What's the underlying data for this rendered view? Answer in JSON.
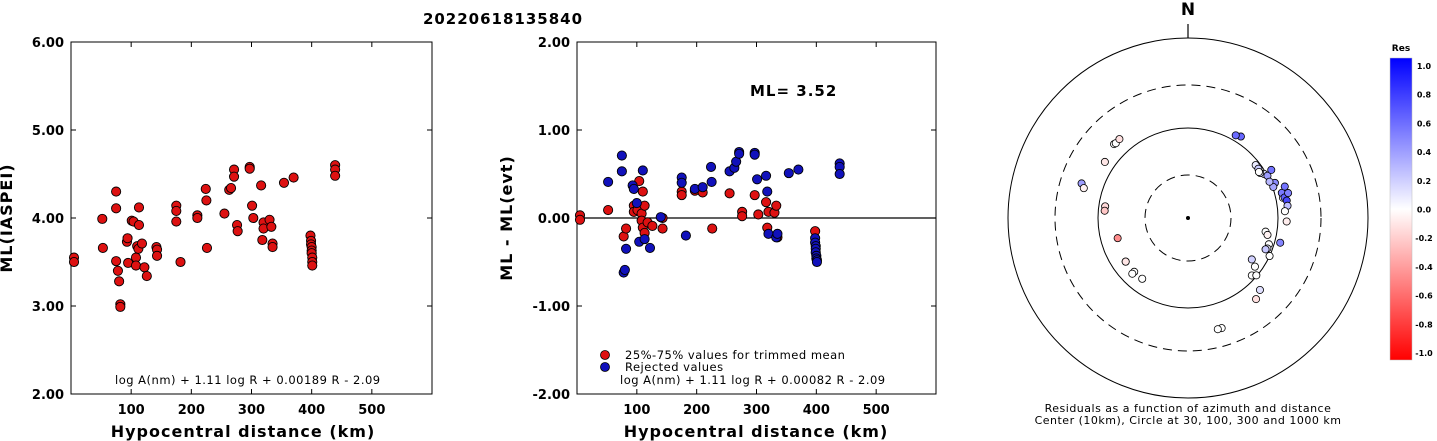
{
  "header": {
    "event_id": "20220618135840"
  },
  "chart_data": [
    {
      "type": "scatter",
      "title": "",
      "xlabel": "Hypocentral distance (km)",
      "ylabel": "ML(IASPEI)",
      "xlim": [
        0,
        600
      ],
      "ylim": [
        2.0,
        6.0
      ],
      "xticks": [
        "100",
        "200",
        "300",
        "400",
        "500"
      ],
      "yticks": [
        "2.00",
        "3.00",
        "4.00",
        "5.00",
        "6.00"
      ],
      "annotation": "log A(nm) + 1.11 log R + 0.00189 R - 2.09",
      "series": [
        {
          "color": "#dd1111",
          "points": [
            [
              5,
              3.55
            ],
            [
              5,
              3.5
            ],
            [
              52,
              3.99
            ],
            [
              53,
              3.66
            ],
            [
              75,
              4.3
            ],
            [
              75,
              4.11
            ],
            [
              75,
              3.51
            ],
            [
              78,
              3.4
            ],
            [
              80,
              3.28
            ],
            [
              82,
              3.02
            ],
            [
              82,
              2.99
            ],
            [
              93,
              3.73
            ],
            [
              94,
              3.77
            ],
            [
              95,
              3.49
            ],
            [
              101,
              3.97
            ],
            [
              104,
              3.96
            ],
            [
              108,
              3.55
            ],
            [
              108,
              3.46
            ],
            [
              110,
              3.68
            ],
            [
              112,
              3.65
            ],
            [
              113,
              4.12
            ],
            [
              113,
              3.92
            ],
            [
              118,
              3.71
            ],
            [
              122,
              3.44
            ],
            [
              126,
              3.34
            ],
            [
              142,
              3.67
            ],
            [
              143,
              3.64
            ],
            [
              143,
              3.57
            ],
            [
              175,
              4.14
            ],
            [
              175,
              4.08
            ],
            [
              175,
              3.96
            ],
            [
              182,
              3.5
            ],
            [
              210,
              4.03
            ],
            [
              210,
              4.0
            ],
            [
              224,
              4.33
            ],
            [
              225,
              4.2
            ],
            [
              226,
              3.66
            ],
            [
              255,
              4.05
            ],
            [
              263,
              4.32
            ],
            [
              266,
              4.34
            ],
            [
              271,
              4.55
            ],
            [
              271,
              4.47
            ],
            [
              276,
              3.92
            ],
            [
              277,
              3.85
            ],
            [
              297,
              4.58
            ],
            [
              297,
              4.56
            ],
            [
              301,
              4.14
            ],
            [
              303,
              4.0
            ],
            [
              316,
              4.37
            ],
            [
              318,
              3.75
            ],
            [
              320,
              3.95
            ],
            [
              320,
              3.88
            ],
            [
              330,
              3.98
            ],
            [
              333,
              3.9
            ],
            [
              335,
              3.71
            ],
            [
              335,
              3.67
            ],
            [
              354,
              4.4
            ],
            [
              370,
              4.46
            ],
            [
              398,
              3.8
            ],
            [
              399,
              3.74
            ],
            [
              399,
              3.7
            ],
            [
              400,
              3.67
            ],
            [
              400,
              3.63
            ],
            [
              400,
              3.6
            ],
            [
              401,
              3.55
            ],
            [
              401,
              3.5
            ],
            [
              401,
              3.46
            ],
            [
              439,
              4.6
            ],
            [
              439,
              4.55
            ],
            [
              439,
              4.48
            ]
          ]
        }
      ]
    },
    {
      "type": "scatter",
      "title": "",
      "xlabel": "Hypocentral distance (km)",
      "ylabel": "ML - ML(evt)",
      "xlim": [
        0,
        600
      ],
      "ylim": [
        -2.0,
        2.0
      ],
      "xticks": [
        "100",
        "200",
        "300",
        "400",
        "500"
      ],
      "yticks": [
        "-2.00",
        "-1.00",
        "0.00",
        "1.00",
        "2.00"
      ],
      "reference_line": 0.0,
      "ml_label": "ML= 3.52",
      "annotation": "log A(nm) + 1.11 log R + 0.00082 R - 2.09",
      "legend": [
        {
          "label": "25%-75% values for trimmed mean",
          "color": "#dd1111"
        },
        {
          "label": "Rejected values",
          "color": "#1111bb"
        }
      ],
      "series": [
        {
          "color": "#dd1111",
          "points": [
            [
              5,
              0.03
            ],
            [
              5,
              -0.02
            ],
            [
              52,
              0.09
            ],
            [
              78,
              -0.21
            ],
            [
              82,
              -0.12
            ],
            [
              95,
              0.14
            ],
            [
              95,
              0.07
            ],
            [
              101,
              0.09
            ],
            [
              104,
              0.42
            ],
            [
              108,
              0.05
            ],
            [
              108,
              -0.03
            ],
            [
              110,
              0.3
            ],
            [
              110,
              -0.11
            ],
            [
              113,
              0.14
            ],
            [
              113,
              -0.17
            ],
            [
              118,
              -0.05
            ],
            [
              126,
              -0.09
            ],
            [
              143,
              0.0
            ],
            [
              143,
              -0.12
            ],
            [
              175,
              0.3
            ],
            [
              175,
              0.26
            ],
            [
              197,
              0.31
            ],
            [
              210,
              0.29
            ],
            [
              226,
              -0.12
            ],
            [
              255,
              0.28
            ],
            [
              276,
              0.07
            ],
            [
              276,
              0.02
            ],
            [
              297,
              0.26
            ],
            [
              303,
              0.04
            ],
            [
              316,
              0.18
            ],
            [
              318,
              -0.11
            ],
            [
              320,
              0.07
            ],
            [
              330,
              0.06
            ],
            [
              333,
              0.14
            ],
            [
              335,
              -0.22
            ],
            [
              398,
              -0.15
            ]
          ]
        },
        {
          "color": "#1111bb",
          "points": [
            [
              52,
              0.41
            ],
            [
              75,
              0.71
            ],
            [
              75,
              0.53
            ],
            [
              78,
              -0.62
            ],
            [
              80,
              -0.59
            ],
            [
              82,
              -0.35
            ],
            [
              93,
              0.37
            ],
            [
              95,
              0.33
            ],
            [
              100,
              0.17
            ],
            [
              104,
              -0.27
            ],
            [
              110,
              0.54
            ],
            [
              113,
              -0.24
            ],
            [
              122,
              -0.34
            ],
            [
              140,
              0.01
            ],
            [
              175,
              0.46
            ],
            [
              175,
              0.4
            ],
            [
              182,
              -0.2
            ],
            [
              197,
              0.33
            ],
            [
              210,
              0.35
            ],
            [
              224,
              0.58
            ],
            [
              225,
              0.41
            ],
            [
              255,
              0.53
            ],
            [
              263,
              0.57
            ],
            [
              266,
              0.64
            ],
            [
              271,
              0.75
            ],
            [
              271,
              0.73
            ],
            [
              297,
              0.74
            ],
            [
              297,
              0.72
            ],
            [
              301,
              0.44
            ],
            [
              316,
              0.48
            ],
            [
              318,
              0.3
            ],
            [
              320,
              -0.18
            ],
            [
              333,
              -0.22
            ],
            [
              335,
              -0.18
            ],
            [
              354,
              0.51
            ],
            [
              370,
              0.55
            ],
            [
              398,
              -0.23
            ],
            [
              398,
              -0.28
            ],
            [
              399,
              -0.32
            ],
            [
              399,
              -0.35
            ],
            [
              399,
              -0.39
            ],
            [
              400,
              -0.43
            ],
            [
              400,
              -0.46
            ],
            [
              401,
              -0.48
            ],
            [
              401,
              -0.5
            ],
            [
              439,
              0.62
            ],
            [
              439,
              0.58
            ],
            [
              439,
              0.5
            ]
          ]
        }
      ]
    },
    {
      "type": "scatter",
      "subtype": "polar-residual-map",
      "north_label": "N",
      "caption_line1": "Residuals as a function of azimuth and distance",
      "caption_line2": "Center (10km), Circle at 30, 100, 300 and 1000 km",
      "rings_km": [
        30,
        100,
        300,
        1000
      ],
      "colorbar": {
        "title": "Res",
        "ticks": [
          "1.0",
          "0.8",
          "0.6",
          "0.4",
          "0.2",
          "0.0",
          "-0.2",
          "-0.4",
          "-0.6",
          "-0.8",
          "-1.0"
        ],
        "high_color": "#0000ff",
        "low_color": "#ff0000"
      },
      "points_azimuth_distance_residual": [
        [
          -45,
          145,
          0.0
        ],
        [
          -44,
          143,
          0.0
        ],
        [
          -41,
          145,
          -0.12
        ],
        [
          -56,
          130,
          -0.1
        ],
        [
          -72,
          175,
          0.38
        ],
        [
          -74,
          160,
          -0.05
        ],
        [
          -82,
          85,
          -0.15
        ],
        [
          -85,
          85,
          -0.22
        ],
        [
          -106,
          65,
          -0.45
        ],
        [
          -125,
          70,
          0.0
        ],
        [
          -125,
          70,
          -0.1
        ],
        [
          -135,
          70,
          0.0
        ],
        [
          -135,
          75,
          0.0
        ],
        [
          -143,
          70,
          0.0
        ],
        [
          163,
          190,
          0.0
        ],
        [
          165,
          190,
          0.0
        ],
        [
          140,
          150,
          -0.12
        ],
        [
          135,
          135,
          0.12
        ],
        [
          132,
          90,
          0.0
        ],
        [
          130,
          98,
          0.0
        ],
        [
          123,
          70,
          0.18
        ],
        [
          126,
          83,
          0.0
        ],
        [
          100,
          75,
          0.0
        ],
        [
          102,
          80,
          -0.05
        ],
        [
          108,
          88,
          0.0
        ],
        [
          111,
          88,
          0.08
        ],
        [
          112,
          85,
          0.22
        ],
        [
          115,
          100,
          0.0
        ],
        [
          105,
          115,
          0.48
        ],
        [
          92,
          125,
          -0.07
        ],
        [
          78,
          120,
          0.0
        ],
        [
          52,
          90,
          0.08
        ],
        [
          55,
          90,
          0.2
        ],
        [
          60,
          95,
          0.12
        ],
        [
          62,
          100,
          0.38
        ],
        [
          68,
          110,
          0.45
        ],
        [
          75,
          120,
          0.52
        ],
        [
          78,
          125,
          0.62
        ],
        [
          80,
          130,
          0.72
        ],
        [
          72,
          135,
          0.55
        ],
        [
          76,
          140,
          0.5
        ],
        [
          83,
          130,
          0.25
        ],
        [
          86,
          120,
          0.0
        ],
        [
          70,
          102,
          0.35
        ],
        [
          66,
          98,
          0.28
        ],
        [
          58,
          88,
          0.1
        ],
        [
          57,
          87,
          0.0
        ],
        [
          33,
          120,
          0.6
        ],
        [
          30,
          115,
          0.58
        ],
        [
          60,
          117,
          0.55
        ]
      ]
    }
  ]
}
